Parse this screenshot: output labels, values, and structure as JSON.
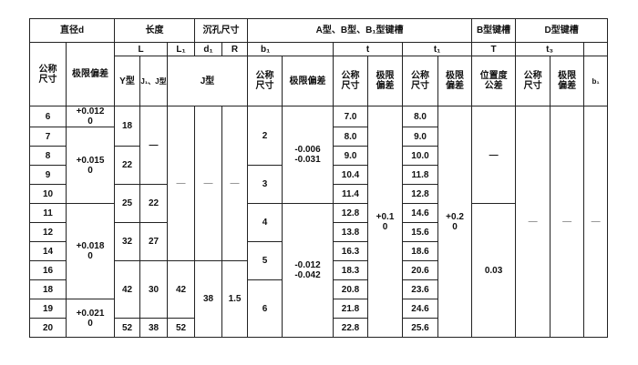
{
  "header": {
    "diameter": "直径d",
    "length": "长度",
    "counterbore": "沉孔尺寸",
    "ab_keyway": "A型、B型、B₁型键槽",
    "b_keyway": "B型键槽",
    "d_keyway": "D型键槽",
    "L": "L",
    "L1": "L₁",
    "d1": "d₁",
    "R": "R",
    "b1": "b₁",
    "t": "t",
    "t1": "t₁",
    "T": "T",
    "t3": "t₃",
    "nominal": "公称尺寸",
    "deviation": "极限偏差",
    "y_type": "Y型",
    "j1_j_type": "J₁、J型",
    "j_type": "J型",
    "position_tol": "位置度公差",
    "b1_d": "b₁"
  },
  "body": {
    "d_nominal": [
      "6",
      "7",
      "8",
      "9",
      "10",
      "11",
      "12",
      "14",
      "16",
      "18",
      "19",
      "20"
    ],
    "d_deviation": [
      "+0.012\n0",
      "+0.015\n0",
      "+0.018\n0",
      "+0.021\n0"
    ],
    "L_y": [
      "18",
      "22",
      "25",
      "32",
      "42",
      "52"
    ],
    "L_j": [
      "—",
      "22",
      "27",
      "30",
      "38"
    ],
    "L1": [
      "—",
      "42",
      "52"
    ],
    "d1": [
      "—",
      "38"
    ],
    "R": [
      "—",
      "1.5"
    ],
    "b1_nominal": [
      "2",
      "3",
      "4",
      "5",
      "6"
    ],
    "b1_deviation": [
      "-0.006\n-0.031",
      "-0.012\n-0.042"
    ],
    "t_nominal": [
      "7.0",
      "8.0",
      "9.0",
      "10.4",
      "11.4",
      "12.8",
      "13.8",
      "16.3",
      "18.3",
      "20.8",
      "21.8",
      "22.8"
    ],
    "t_deviation": "+0.1\n0",
    "t1_nominal": [
      "8.0",
      "9.0",
      "10.0",
      "11.8",
      "12.8",
      "14.6",
      "15.6",
      "18.6",
      "20.6",
      "23.6",
      "24.6",
      "25.6"
    ],
    "t1_deviation": "+0.2\n0",
    "T": [
      "—",
      "0.03"
    ],
    "t3_nominal": "—",
    "t3_deviation": "—",
    "b1_d": "—"
  }
}
